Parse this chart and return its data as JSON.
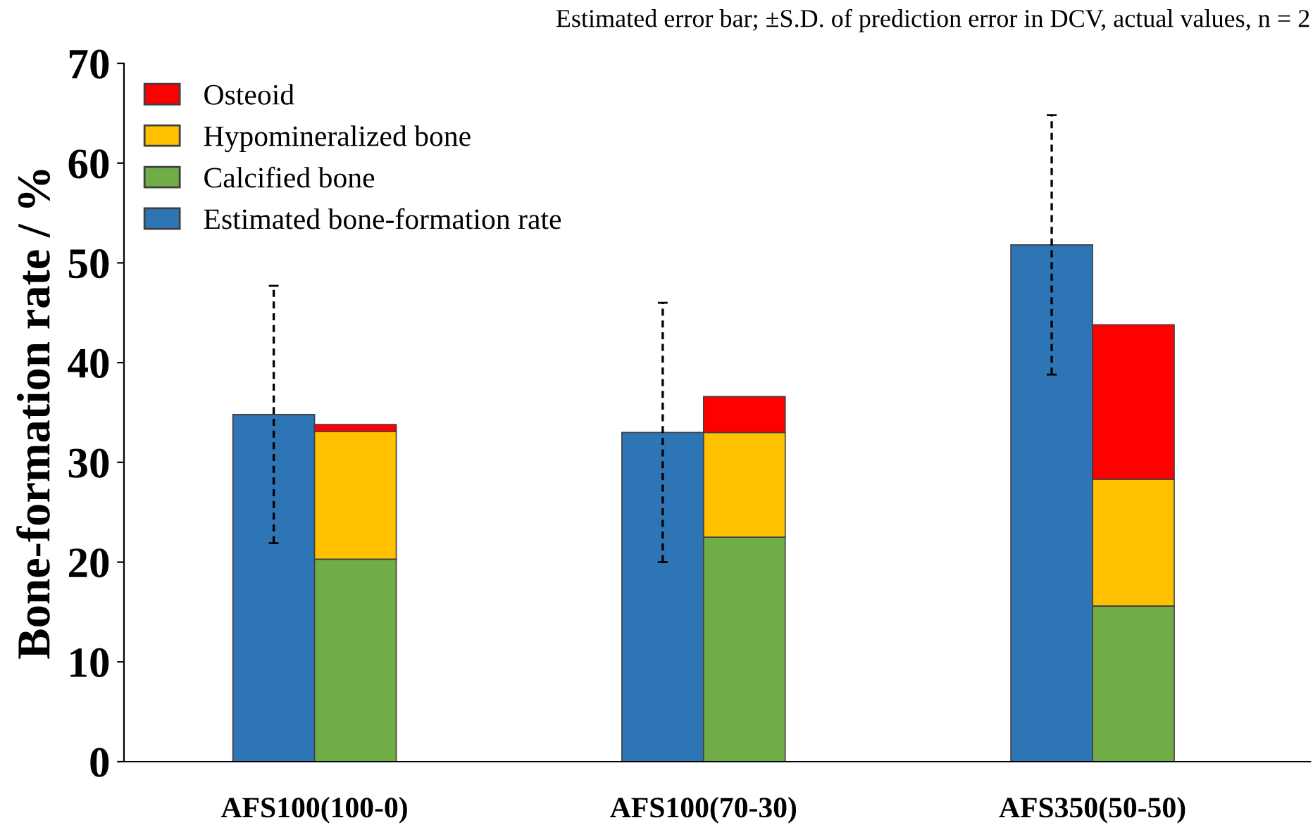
{
  "chart_data": {
    "type": "bar",
    "title": "Estimated error bar; ±S.D. of prediction error in DCV, actual values, n = 2",
    "ylabel": "Bone-formation rate / %",
    "categories": [
      "AFS100(100-0)",
      "AFS100(70-30)",
      "AFS350(50-50)"
    ],
    "series": [
      {
        "name": "Estimated bone-formation rate",
        "color": "#2e75b6",
        "values": [
          34.8,
          33.0,
          51.8
        ],
        "errors": [
          12.9,
          13.0,
          13.0
        ]
      },
      {
        "name": "Calcified bone",
        "color": "#70ad47",
        "values": [
          20.3,
          22.5,
          15.6
        ],
        "base": [
          0,
          0,
          0
        ]
      },
      {
        "name": "Hypomineralized bone",
        "color": "#ffc000",
        "values": [
          12.8,
          10.5,
          12.7
        ],
        "base": [
          20.3,
          22.5,
          15.6
        ]
      },
      {
        "name": "Osteoid",
        "color": "#ff0000",
        "values": [
          0.7,
          3.6,
          15.5
        ],
        "base": [
          33.1,
          33.0,
          28.3
        ]
      }
    ],
    "ylim": [
      0,
      70
    ],
    "yticks": [
      0,
      10,
      20,
      30,
      40,
      50,
      60,
      70
    ],
    "legend": "top left"
  }
}
